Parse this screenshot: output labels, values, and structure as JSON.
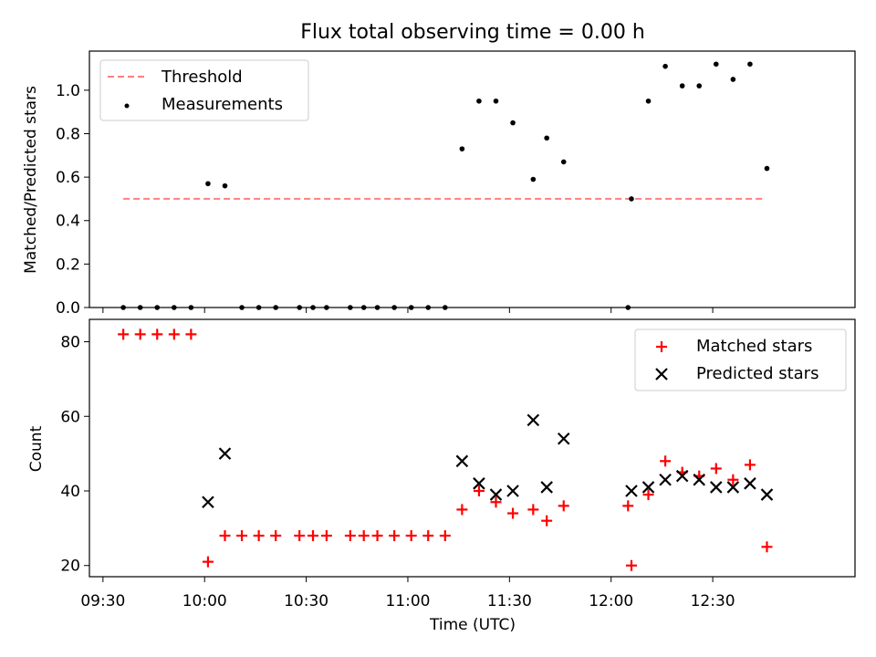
{
  "chart_data": [
    {
      "type": "scatter",
      "title": "Flux total observing time = 0.00 h",
      "xlabel": "",
      "ylabel": "Matched/Predicted stars",
      "xlim": [
        "09:26",
        "13:12"
      ],
      "ylim": [
        0,
        1.18
      ],
      "yticks": [
        "0.0",
        "0.2",
        "0.4",
        "0.6",
        "0.8",
        "1.0"
      ],
      "legend_position": "top-left",
      "series": [
        {
          "name": "Threshold",
          "kind": "line",
          "style": "dashed",
          "color": "#ff7f7f",
          "x": [
            "09:36",
            "12:45"
          ],
          "y": [
            0.5,
            0.5
          ]
        },
        {
          "name": "Measurements",
          "kind": "scatter",
          "marker": "dot",
          "color": "#000000",
          "x": [
            "09:36",
            "09:41",
            "09:46",
            "09:51",
            "09:56",
            "10:01",
            "10:06",
            "10:11",
            "10:16",
            "10:21",
            "10:28",
            "10:32",
            "10:36",
            "10:43",
            "10:47",
            "10:51",
            "10:56",
            "11:01",
            "11:06",
            "11:11",
            "11:16",
            "11:21",
            "11:26",
            "11:31",
            "11:37",
            "11:41",
            "11:46",
            "12:05",
            "12:06",
            "12:11",
            "12:16",
            "12:21",
            "12:26",
            "12:31",
            "12:36",
            "12:41",
            "12:46"
          ],
          "y": [
            0,
            0,
            0,
            0,
            0,
            0.57,
            0.56,
            0,
            0,
            0,
            0,
            0,
            0,
            0,
            0,
            0,
            0,
            0,
            0,
            0,
            0.73,
            0.95,
            0.95,
            0.85,
            0.59,
            0.78,
            0.67,
            0,
            0.5,
            0.95,
            1.11,
            1.02,
            1.02,
            1.12,
            1.05,
            1.12,
            0.64
          ]
        }
      ]
    },
    {
      "type": "scatter",
      "title": "",
      "xlabel": "Time (UTC)",
      "ylabel": "Count",
      "xlim": [
        "09:26",
        "13:12"
      ],
      "ylim": [
        17,
        86
      ],
      "yticks": [
        "20",
        "40",
        "60",
        "80"
      ],
      "xticks": [
        "09:30",
        "10:00",
        "10:30",
        "11:00",
        "11:30",
        "12:00",
        "12:30"
      ],
      "legend_position": "top-right",
      "series": [
        {
          "name": "Matched stars",
          "kind": "scatter",
          "marker": "plus",
          "color": "#ff0000",
          "x": [
            "09:36",
            "09:41",
            "09:46",
            "09:51",
            "09:56",
            "10:01",
            "10:06",
            "10:11",
            "10:16",
            "10:21",
            "10:28",
            "10:32",
            "10:36",
            "10:43",
            "10:47",
            "10:51",
            "10:56",
            "11:01",
            "11:06",
            "11:11",
            "11:16",
            "11:21",
            "11:26",
            "11:31",
            "11:37",
            "11:41",
            "11:46",
            "12:05",
            "12:06",
            "12:11",
            "12:16",
            "12:21",
            "12:26",
            "12:31",
            "12:36",
            "12:41",
            "12:46"
          ],
          "y": [
            82,
            82,
            82,
            82,
            82,
            21,
            28,
            28,
            28,
            28,
            28,
            28,
            28,
            28,
            28,
            28,
            28,
            28,
            28,
            28,
            35,
            40,
            37,
            34,
            35,
            32,
            36,
            36,
            20,
            39,
            48,
            45,
            44,
            46,
            43,
            47,
            25
          ]
        },
        {
          "name": "Predicted stars",
          "kind": "scatter",
          "marker": "x",
          "color": "#000000",
          "x": [
            "10:01",
            "10:06",
            "11:16",
            "11:21",
            "11:26",
            "11:31",
            "11:37",
            "11:41",
            "11:46",
            "12:06",
            "12:11",
            "12:16",
            "12:21",
            "12:26",
            "12:31",
            "12:36",
            "12:41",
            "12:46"
          ],
          "y": [
            37,
            50,
            48,
            42,
            39,
            40,
            59,
            41,
            54,
            40,
            41,
            43,
            44,
            43,
            41,
            41,
            42,
            39
          ]
        }
      ]
    }
  ]
}
